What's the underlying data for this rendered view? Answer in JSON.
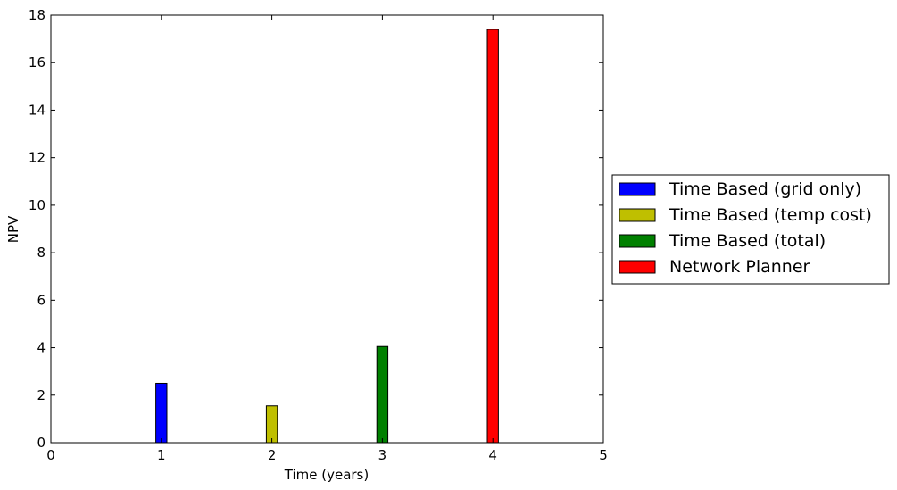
{
  "chart_data": {
    "type": "bar",
    "title": "",
    "xlabel": "Time (years)",
    "ylabel": "NPV",
    "xlim": [
      0,
      5
    ],
    "ylim": [
      0,
      18
    ],
    "xticks": [
      0,
      1,
      2,
      3,
      4,
      5
    ],
    "yticks": [
      0,
      2,
      4,
      6,
      8,
      10,
      12,
      14,
      16,
      18
    ],
    "grid": false,
    "legend_position": "right, outside plot area",
    "series": [
      {
        "name": "Time Based (grid only)",
        "x": 1,
        "value": 2.5,
        "color": "#0000ff"
      },
      {
        "name": "Time Based (temp cost)",
        "x": 2,
        "value": 1.55,
        "color": "#bfbf00"
      },
      {
        "name": "Time Based (total)",
        "x": 3,
        "value": 4.05,
        "color": "#008000"
      },
      {
        "name": "Network Planner",
        "x": 4,
        "value": 17.4,
        "color": "#ff0000"
      }
    ]
  }
}
